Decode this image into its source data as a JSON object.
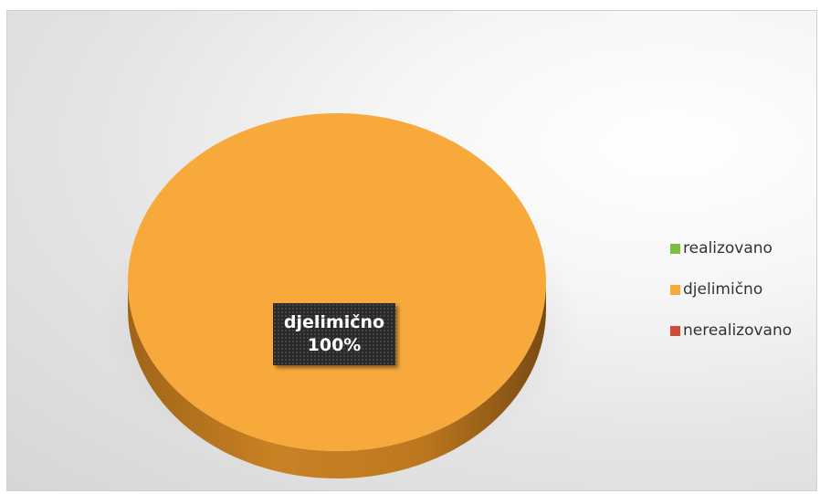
{
  "chart_data": {
    "type": "pie",
    "style": "3d",
    "categories": [
      "realizovano",
      "djelimično",
      "nerealizovano"
    ],
    "values": [
      0,
      100,
      0
    ],
    "colors": [
      "#7cbf3f",
      "#f8a93c",
      "#d04b3a"
    ],
    "data_label": {
      "category": "djelimično",
      "value": "100%"
    },
    "legend": {
      "position": "right",
      "entries": [
        {
          "label": "realizovano",
          "color": "#7cbf3f"
        },
        {
          "label": "djelimično",
          "color": "#f8a93c"
        },
        {
          "label": "nerealizovano",
          "color": "#d04b3a"
        }
      ]
    }
  }
}
